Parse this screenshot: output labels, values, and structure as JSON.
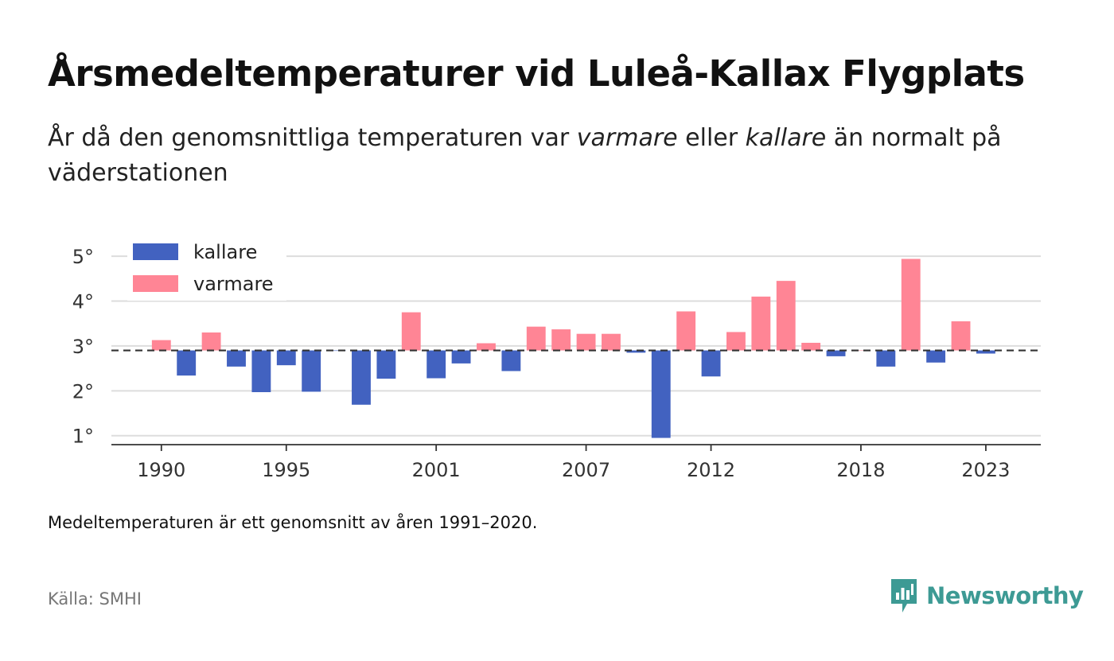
{
  "header": {
    "title": "Årsmedeltemperaturer vid Luleå-Kallax Flygplats",
    "subtitle_parts": [
      "År då den genomsnittliga temperaturen var ",
      "varmare",
      " eller ",
      "kallare",
      " än normalt på väderstationen"
    ]
  },
  "footer": {
    "note": "Medeltemperaturen är ett genomsnitt av åren 1991–2020.",
    "source": "Källa: SMHI",
    "brand": "Newsworthy"
  },
  "colors": {
    "kallare": "#4262c0",
    "varmare": "#ff8595",
    "brand": "#3d9a94"
  },
  "chart_data": {
    "type": "bar",
    "baseline": 2.9,
    "ylim": [
      0.8,
      5.25
    ],
    "yticks": [
      1,
      2,
      3,
      4,
      5
    ],
    "ytick_labels": [
      "1°",
      "2°",
      "3°",
      "4°",
      "5°"
    ],
    "xticks": [
      1990,
      1995,
      2001,
      2007,
      2012,
      2018,
      2023
    ],
    "xlim": [
      1988,
      2025.2
    ],
    "grid": true,
    "legend_position": "top-left",
    "legend": [
      {
        "key": "kallare",
        "label": "kallare"
      },
      {
        "key": "varmare",
        "label": "varmare"
      }
    ],
    "x": [
      1990,
      1991,
      1992,
      1993,
      1994,
      1995,
      1996,
      1997,
      1998,
      1999,
      2000,
      2001,
      2002,
      2003,
      2004,
      2005,
      2006,
      2007,
      2008,
      2009,
      2010,
      2011,
      2012,
      2013,
      2014,
      2015,
      2016,
      2017,
      2018,
      2019,
      2020,
      2021,
      2022,
      2023
    ],
    "values": [
      3.13,
      2.34,
      3.3,
      2.54,
      1.97,
      2.57,
      1.98,
      2.89,
      1.69,
      2.27,
      3.75,
      2.28,
      2.61,
      3.06,
      2.44,
      3.43,
      3.37,
      3.27,
      3.27,
      2.85,
      0.95,
      3.77,
      2.32,
      3.31,
      4.1,
      4.45,
      3.07,
      2.77,
      2.9,
      2.54,
      4.94,
      2.63,
      3.55,
      2.83
    ]
  }
}
